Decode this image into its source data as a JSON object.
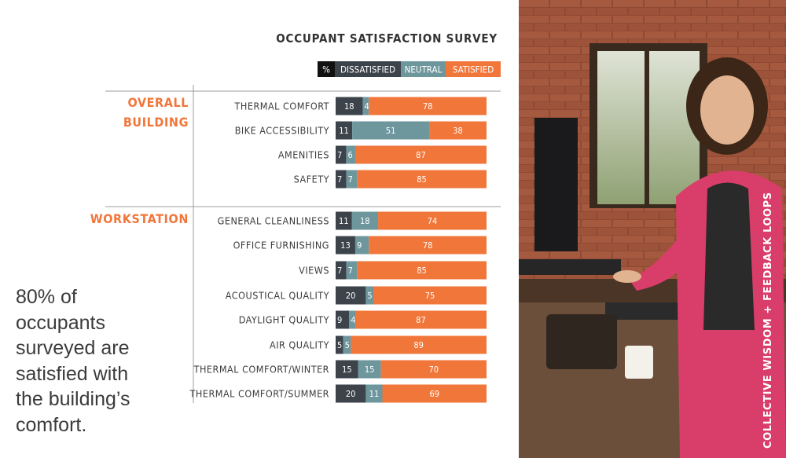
{
  "chart_data": {
    "type": "bar",
    "orientation": "horizontal",
    "stacked": true,
    "title": "OCCUPANT SATISFACTION SURVEY",
    "legend": {
      "unit": "%",
      "position": "top-right",
      "items": [
        {
          "name": "DISSATISFIED",
          "color": "#3d434b"
        },
        {
          "name": "NEUTRAL",
          "color": "#6d969d"
        },
        {
          "name": "SATISFIED",
          "color": "#f1763a"
        }
      ]
    },
    "groups": [
      {
        "label_lines": [
          "OVERALL",
          "BUILDING"
        ],
        "rows": [
          {
            "label": "THERMAL COMFORT",
            "values": [
              18,
              4,
              78
            ]
          },
          {
            "label": "BIKE ACCESSIBILITY",
            "values": [
              11,
              51,
              38
            ]
          },
          {
            "label": "AMENITIES",
            "values": [
              7,
              6,
              87
            ]
          },
          {
            "label": "SAFETY",
            "values": [
              7,
              7,
              85
            ]
          }
        ]
      },
      {
        "label_lines": [
          "WORKSTATION"
        ],
        "rows": [
          {
            "label": "GENERAL CLEANLINESS",
            "values": [
              11,
              18,
              74
            ]
          },
          {
            "label": "OFFICE FURNISHING",
            "values": [
              13,
              9,
              78
            ]
          },
          {
            "label": "VIEWS",
            "values": [
              7,
              7,
              85
            ]
          },
          {
            "label": "ACOUSTICAL QUALITY",
            "values": [
              20,
              5,
              75
            ]
          },
          {
            "label": "DAYLIGHT QUALITY",
            "values": [
              9,
              4,
              87
            ]
          },
          {
            "label": "AIR QUALITY",
            "values": [
              5,
              5,
              89
            ]
          },
          {
            "label": "THERMAL COMFORT/WINTER",
            "values": [
              15,
              15,
              70
            ]
          },
          {
            "label": "THERMAL COMFORT/SUMMER",
            "values": [
              20,
              11,
              69
            ]
          }
        ]
      }
    ],
    "xlim": [
      0,
      100
    ],
    "colors": {
      "accent": "#f1763a",
      "label": "#3b3b3b",
      "rule": "#9c9c9c",
      "neutral": "#6d969d",
      "dissatisfied": "#3d434b"
    }
  },
  "callout": {
    "text": "80% of occupants surveyed are satisfied with the building’s comfort."
  },
  "photo": {
    "caption": "COLLECTIVE WISDOM + FEEDBACK LOOPS"
  }
}
